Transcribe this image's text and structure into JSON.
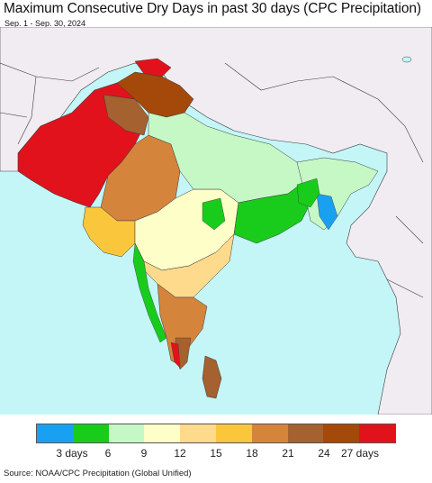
{
  "title": "Maximum Consecutive Dry Days in past 30 days (CPC Precipitation)",
  "subtitle": "Sep. 1 - Sep. 30, 2024",
  "source": "Source: NOAA/CPC Precipitation (Global Unified)",
  "colors": {
    "ocean": "#c4f6f8",
    "land_outside": "#f0ecf1",
    "border": "#3a3a3a"
  },
  "legend": {
    "swatches": [
      {
        "color": "#1aa0f0"
      },
      {
        "color": "#19cc1b"
      },
      {
        "color": "#c6f8c6"
      },
      {
        "color": "#fefec8"
      },
      {
        "color": "#fdda8c"
      },
      {
        "color": "#fac73c"
      },
      {
        "color": "#d5843c"
      },
      {
        "color": "#a5612f"
      },
      {
        "color": "#a4490a"
      },
      {
        "color": "#e2121c"
      }
    ],
    "labels": [
      {
        "text": "3 days",
        "boundary": 1
      },
      {
        "text": "6",
        "boundary": 2
      },
      {
        "text": "9",
        "boundary": 3
      },
      {
        "text": "12",
        "boundary": 4
      },
      {
        "text": "15",
        "boundary": 5
      },
      {
        "text": "18",
        "boundary": 6
      },
      {
        "text": "21",
        "boundary": 7
      },
      {
        "text": "24",
        "boundary": 8
      },
      {
        "text": "27 days",
        "boundary": 9
      }
    ]
  }
}
